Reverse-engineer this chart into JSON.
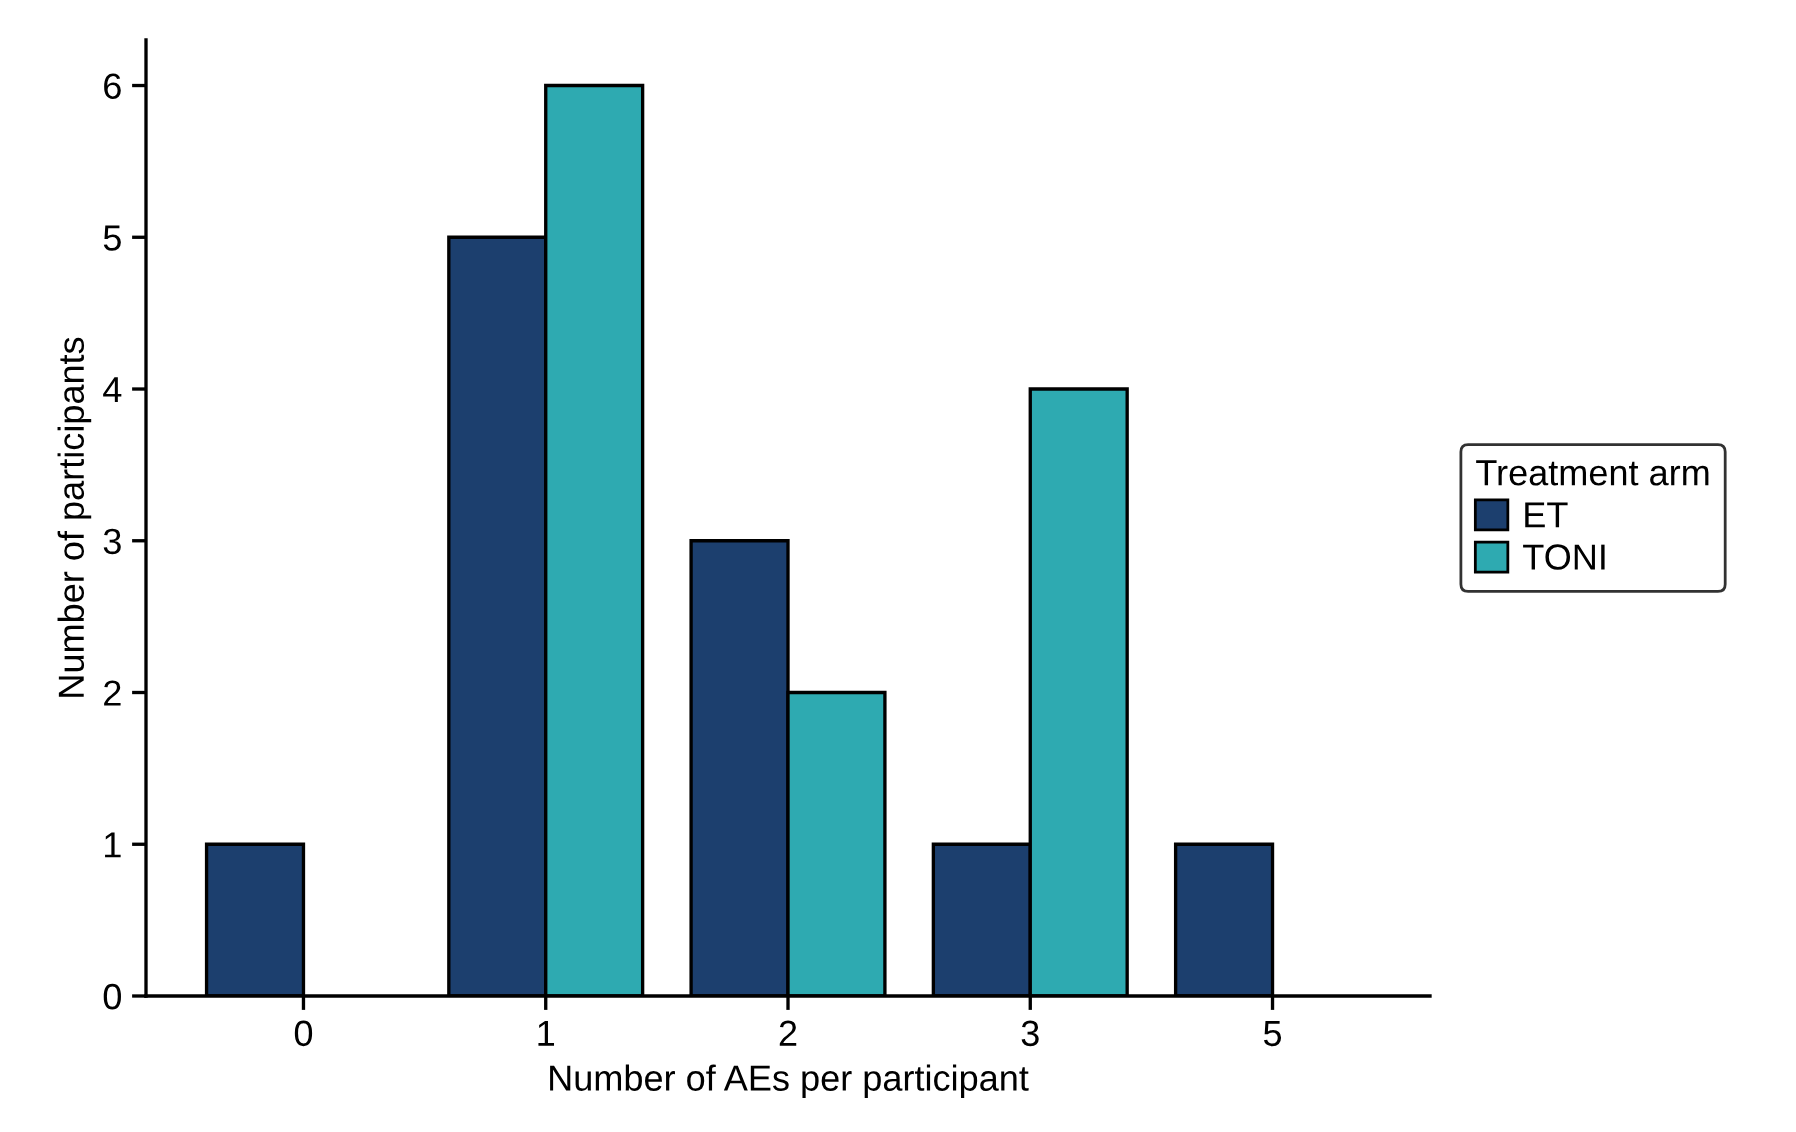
{
  "chart_data": {
    "type": "bar",
    "xlabel": "Number of AEs per participant",
    "ylabel": "Number of participants",
    "legend_title": "Treatment arm",
    "categories": [
      "0",
      "1",
      "2",
      "3",
      "5"
    ],
    "series": [
      {
        "name": "ET",
        "color": "#1c3f6e",
        "values": [
          1,
          5,
          3,
          1,
          1
        ]
      },
      {
        "name": "TONI",
        "color": "#2eaab1",
        "values": [
          null,
          6,
          2,
          4,
          null
        ]
      }
    ],
    "ylim": [
      0,
      6.3
    ],
    "yticks": [
      0,
      1,
      2,
      3,
      4,
      5,
      6
    ],
    "grid": false,
    "legend": "right"
  }
}
